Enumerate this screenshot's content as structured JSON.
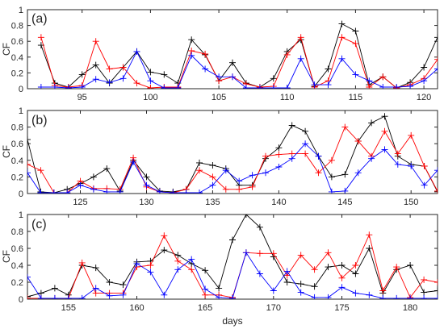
{
  "figure": {
    "xlabel": "days"
  },
  "chart_data": [
    {
      "type": "line",
      "panel_label": "(a)",
      "ylabel": "CF",
      "xlim": [
        91,
        121
      ],
      "ylim": [
        0,
        1
      ],
      "xticks": [
        95,
        100,
        105,
        110,
        115,
        120
      ],
      "yticks": [
        0,
        0.2,
        0.4,
        0.6,
        0.8,
        1
      ],
      "series": [
        {
          "color": "#000000",
          "marker": "+",
          "x": [
            92,
            93,
            94,
            95,
            96,
            97,
            98,
            99,
            100,
            101,
            102,
            103,
            104,
            105,
            106,
            107,
            108,
            109,
            110,
            111,
            112,
            113,
            114,
            115,
            116,
            117,
            118,
            119,
            120,
            121
          ],
          "y": [
            0.55,
            0.07,
            0.02,
            0.18,
            0.3,
            0.07,
            0.27,
            0.47,
            0.21,
            0.18,
            0.07,
            0.62,
            0.43,
            0.1,
            0.33,
            0.07,
            0.02,
            0.13,
            0.47,
            0.62,
            0.03,
            0.25,
            0.82,
            0.73,
            0.05,
            0.15,
            0.01,
            0.08,
            0.27,
            0.65
          ]
        },
        {
          "color": "#ff0000",
          "marker": "+",
          "x": [
            92,
            93,
            94,
            95,
            96,
            97,
            98,
            99,
            100,
            101,
            102,
            103,
            104,
            105,
            106,
            107,
            108,
            109,
            110,
            111,
            112,
            113,
            114,
            115,
            116,
            117,
            118,
            119,
            120,
            121
          ],
          "y": [
            0.65,
            0.04,
            0.02,
            0.04,
            0.6,
            0.25,
            0.27,
            0.07,
            0.01,
            0.02,
            0.02,
            0.48,
            0.44,
            0.1,
            0.15,
            0.06,
            0.02,
            0.03,
            0.43,
            0.65,
            0.02,
            0.1,
            0.65,
            0.57,
            0.02,
            0.15,
            0.01,
            0.05,
            0.13,
            0.37
          ]
        },
        {
          "color": "#0000ff",
          "marker": "+",
          "x": [
            92,
            93,
            94,
            95,
            96,
            97,
            98,
            99,
            100,
            101,
            102,
            103,
            104,
            105,
            106,
            107,
            108,
            109,
            110,
            111,
            112,
            113,
            114,
            115,
            116,
            117,
            118,
            119,
            120,
            121
          ],
          "y": [
            0.02,
            0.02,
            0.01,
            0.02,
            0.12,
            0.08,
            0.13,
            0.47,
            0.1,
            0.01,
            0.01,
            0.42,
            0.25,
            0.15,
            0.15,
            0.01,
            0.01,
            0.01,
            0.01,
            0.38,
            0.05,
            0.05,
            0.38,
            0.18,
            0.1,
            0.02,
            0.02,
            0.03,
            0.1,
            0.25
          ]
        }
      ]
    },
    {
      "type": "line",
      "panel_label": "(b)",
      "ylabel": "CF",
      "xlim": [
        121,
        152
      ],
      "ylim": [
        0,
        1
      ],
      "xticks": [
        125,
        130,
        135,
        140,
        145,
        150
      ],
      "yticks": [
        0,
        0.2,
        0.4,
        0.6,
        0.8,
        1
      ],
      "series": [
        {
          "color": "#000000",
          "marker": "+",
          "x": [
            121,
            122,
            123,
            124,
            125,
            126,
            127,
            128,
            129,
            130,
            131,
            132,
            133,
            134,
            135,
            136,
            137,
            138,
            139,
            140,
            141,
            142,
            143,
            144,
            145,
            146,
            147,
            148,
            149,
            150,
            151,
            152
          ],
          "y": [
            0.65,
            0.02,
            0.01,
            0.05,
            0.12,
            0.2,
            0.3,
            0.03,
            0.4,
            0.2,
            0.03,
            0.02,
            0.05,
            0.37,
            0.34,
            0.3,
            0.1,
            0.1,
            0.42,
            0.55,
            0.82,
            0.75,
            0.45,
            0.2,
            0.23,
            0.63,
            0.85,
            0.93,
            0.45,
            0.35,
            0.33,
            0.02
          ]
        },
        {
          "color": "#ff0000",
          "marker": "+",
          "x": [
            121,
            122,
            123,
            124,
            125,
            126,
            127,
            128,
            129,
            130,
            131,
            132,
            133,
            134,
            135,
            136,
            137,
            138,
            139,
            140,
            141,
            142,
            143,
            144,
            145,
            146,
            147,
            148,
            149,
            150,
            151,
            152
          ],
          "y": [
            0.35,
            0.28,
            0.01,
            0.01,
            0.15,
            0.06,
            0.06,
            0.05,
            0.43,
            0.08,
            0.02,
            0.01,
            0.05,
            0.28,
            0.2,
            0.05,
            0.05,
            0.08,
            0.45,
            0.47,
            0.48,
            0.48,
            0.25,
            0.4,
            0.8,
            0.63,
            0.45,
            0.75,
            0.48,
            0.7,
            0.33,
            0.03
          ]
        },
        {
          "color": "#0000ff",
          "marker": "+",
          "x": [
            121,
            122,
            123,
            124,
            125,
            126,
            127,
            128,
            129,
            130,
            131,
            132,
            133,
            134,
            135,
            136,
            137,
            138,
            139,
            140,
            141,
            142,
            143,
            144,
            145,
            146,
            147,
            148,
            149,
            150,
            151,
            152
          ],
          "y": [
            0.25,
            0.01,
            0.01,
            0.01,
            0.1,
            0.05,
            0.02,
            0.02,
            0.38,
            0.1,
            0.02,
            0.01,
            0.01,
            0.01,
            0.1,
            0.28,
            0.15,
            0.22,
            0.25,
            0.32,
            0.42,
            0.6,
            0.45,
            0.02,
            0.03,
            0.25,
            0.42,
            0.53,
            0.35,
            0.33,
            0.1,
            0.28
          ]
        }
      ]
    },
    {
      "type": "line",
      "panel_label": "(c)",
      "ylabel": "CF",
      "xlim": [
        152,
        182
      ],
      "ylim": [
        0,
        1
      ],
      "xticks": [
        155,
        160,
        165,
        170,
        175,
        180
      ],
      "yticks": [
        0,
        0.2,
        0.4,
        0.6,
        0.8,
        1
      ],
      "series": [
        {
          "color": "#000000",
          "marker": "+",
          "x": [
            152,
            153,
            154,
            155,
            156,
            157,
            158,
            159,
            160,
            161,
            162,
            163,
            164,
            165,
            166,
            167,
            168,
            169,
            170,
            171,
            172,
            173,
            174,
            175,
            176,
            177,
            178,
            179,
            180,
            181,
            182
          ],
          "y": [
            0.03,
            0.07,
            0.13,
            0.05,
            0.4,
            0.37,
            0.2,
            0.17,
            0.44,
            0.45,
            0.58,
            0.52,
            0.42,
            0.34,
            0.13,
            0.7,
            1.0,
            0.85,
            0.5,
            0.2,
            0.18,
            0.15,
            0.38,
            0.4,
            0.3,
            0.6,
            0.07,
            0.35,
            0.4,
            0.08,
            0.1
          ]
        },
        {
          "color": "#ff0000",
          "marker": "+",
          "x": [
            152,
            153,
            154,
            155,
            156,
            157,
            158,
            159,
            160,
            161,
            162,
            163,
            164,
            165,
            166,
            167,
            168,
            169,
            170,
            171,
            172,
            173,
            174,
            175,
            176,
            177,
            178,
            179,
            180,
            181,
            182
          ],
          "y": [
            0.01,
            0.01,
            0.01,
            0.01,
            0.43,
            0.07,
            0.07,
            0.07,
            0.38,
            0.4,
            0.75,
            0.45,
            0.35,
            0.05,
            0.05,
            0.02,
            0.55,
            0.54,
            0.54,
            0.28,
            0.52,
            0.35,
            0.55,
            0.25,
            0.4,
            0.76,
            0.1,
            0.38,
            0.02,
            0.23,
            0.2
          ]
        },
        {
          "color": "#0000ff",
          "marker": "+",
          "x": [
            152,
            153,
            154,
            155,
            156,
            157,
            158,
            159,
            160,
            161,
            162,
            163,
            164,
            165,
            166,
            167,
            168,
            169,
            170,
            171,
            172,
            173,
            174,
            175,
            176,
            177,
            178,
            179,
            180,
            181,
            182
          ],
          "y": [
            0.26,
            0.01,
            0.01,
            0.01,
            0.01,
            0.13,
            0.04,
            0.05,
            0.42,
            0.32,
            0.05,
            0.35,
            0.47,
            0.12,
            0.02,
            0.01,
            0.55,
            0.3,
            0.1,
            0.33,
            0.08,
            0.02,
            0.02,
            0.14,
            0.07,
            0.05,
            0.01,
            0.01,
            0.01,
            0.01,
            0.01
          ]
        }
      ]
    }
  ]
}
